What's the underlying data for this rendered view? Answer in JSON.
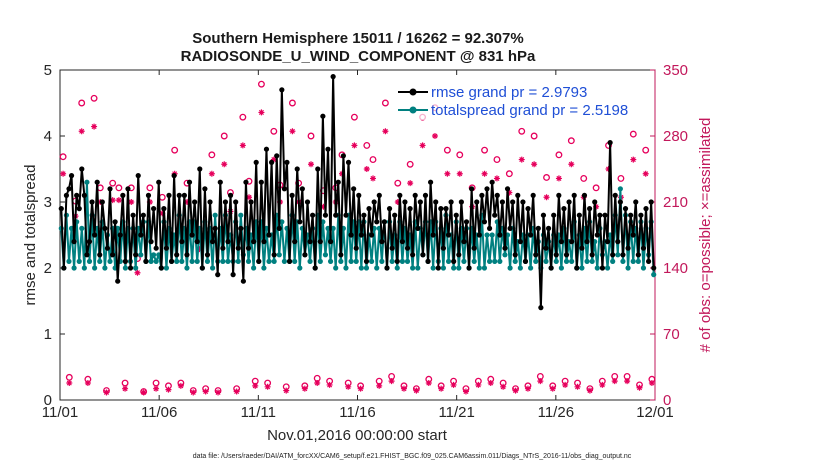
{
  "chart_data": {
    "type": "line",
    "title": "Southern Hemisphere 15011 / 16262 = 92.307%",
    "subtitle": "RADIOSONDE_U_WIND_COMPONENT @ 831 hPa",
    "xlabel": "Nov.01,2016 00:00:00 start",
    "ylabel": "rmse and totalspread",
    "y2label": "# of obs: o=possible; ×=assimilated",
    "xlim": [
      0,
      30
    ],
    "ylim": [
      0,
      5
    ],
    "y2lim": [
      0,
      350
    ],
    "xtick_values": [
      0,
      5,
      10,
      15,
      20,
      25,
      30
    ],
    "xtick_labels": [
      "11/01",
      "11/06",
      "11/11",
      "11/16",
      "11/21",
      "11/26",
      "12/01"
    ],
    "ytick_labels": [
      "0",
      "1",
      "2",
      "3",
      "4",
      "5"
    ],
    "y2tick_labels": [
      "0",
      "70",
      "140",
      "210",
      "280",
      "350"
    ],
    "footnote": "data file: /Users/raeder/DAI/ATM_forcXX/CAM6_setup/f.e21.FHIST_BGC.f09_025.CAM6assim.011/Diags_NTrS_2016-11/obs_diag_output.nc",
    "series": [
      {
        "name": "rmse",
        "legend": "rmse grand pr = 2.9793",
        "axis": "left",
        "color": "#000000",
        "values": [
          2.9,
          2.0,
          3.1,
          3.2,
          3.4,
          2.4,
          3.1,
          2.9,
          3.5,
          3.1,
          2.2,
          2.4,
          3.0,
          2.5,
          3.3,
          2.2,
          3.0,
          2.6,
          2.3,
          3.2,
          2.2,
          2.7,
          1.8,
          2.5,
          3.1,
          2.1,
          3.2,
          2.0,
          2.8,
          2.2,
          3.4,
          2.5,
          2.8,
          2.1,
          3.1,
          2.4,
          2.9,
          2.3,
          3.3,
          2.0,
          2.9,
          2.3,
          3.1,
          2.1,
          3.4,
          2.2,
          3.1,
          2.4,
          3.1,
          2.2,
          3.3,
          2.5,
          3.0,
          2.4,
          3.5,
          2.0,
          3.2,
          2.2,
          3.0,
          2.4,
          2.6,
          1.9,
          3.3,
          2.3,
          3.0,
          2.4,
          3.1,
          1.9,
          3.0,
          2.3,
          2.6,
          1.8,
          3.3,
          2.3,
          3.0,
          2.4,
          3.6,
          2.1,
          3.3,
          2.4,
          3.8,
          2.5,
          3.6,
          2.2,
          3.7,
          2.6,
          4.7,
          3.2,
          3.6,
          2.1,
          3.1,
          2.4,
          3.5,
          2.7,
          3.2,
          2.2,
          3.0,
          2.4,
          2.8,
          2.0,
          3.5,
          2.4,
          4.3,
          2.8,
          3.8,
          2.4,
          4.9,
          2.8,
          3.3,
          2.2,
          3.7,
          2.8,
          3.6,
          2.5,
          3.2,
          2.3,
          3.1,
          2.5,
          2.8,
          2.1,
          2.9,
          2.5,
          3.0,
          2.7,
          3.1,
          2.4,
          2.7,
          2.0,
          2.9,
          2.3,
          2.8,
          2.1,
          3.1,
          2.4,
          3.0,
          2.3,
          2.9,
          2.2,
          3.1,
          2.6,
          3.0,
          2.2,
          3.1,
          2.1,
          3.3,
          2.5,
          3.0,
          2.0,
          2.9,
          2.3,
          2.9,
          2.5,
          3.0,
          2.1,
          2.8,
          2.2,
          3.0,
          2.4,
          2.7,
          2.0,
          3.2,
          2.3,
          3.0,
          2.5,
          3.1,
          2.7,
          3.2,
          2.6,
          3.3,
          2.8,
          3.1,
          2.5,
          3.0,
          2.3,
          3.2,
          2.6,
          3.0,
          2.2,
          3.1,
          2.4,
          3.0,
          2.1,
          2.9,
          2.5,
          3.1,
          2.2,
          2.6,
          1.4,
          2.8,
          2.3,
          2.6,
          2.0,
          2.8,
          2.2,
          3.1,
          2.4,
          2.9,
          2.2,
          3.0,
          2.4,
          3.1,
          2.0,
          2.8,
          2.3,
          3.1,
          2.4,
          2.9,
          2.2,
          3.0,
          2.5,
          2.8,
          2.0,
          2.8,
          2.4,
          3.9,
          2.2,
          3.1,
          2.4,
          3.0,
          2.2,
          2.9,
          2.3,
          2.8,
          2.5,
          3.0,
          2.2,
          2.8,
          2.3,
          2.9,
          2.1,
          3.0,
          2.0
        ]
      },
      {
        "name": "totalspread",
        "legend": "totalspread grand pr = 2.5198",
        "axis": "left",
        "color": "#008080",
        "values": [
          2.6,
          2.0,
          2.8,
          2.1,
          2.6,
          2.0,
          2.7,
          2.1,
          2.6,
          2.0,
          3.3,
          2.1,
          2.8,
          2.0,
          2.6,
          2.1,
          2.7,
          2.0,
          2.5,
          2.1,
          2.6,
          2.0,
          2.6,
          2.1,
          2.7,
          2.0,
          2.6,
          2.1,
          2.6,
          2.0,
          2.6,
          2.2,
          2.7,
          2.1,
          2.7,
          2.1,
          2.2,
          2.1,
          2.2,
          2.0,
          2.7,
          2.0,
          2.6,
          2.1,
          2.5,
          2.1,
          2.8,
          2.1,
          2.6,
          2.0,
          2.7,
          2.1,
          2.7,
          2.1,
          2.6,
          2.0,
          2.7,
          2.1,
          2.6,
          2.0,
          2.8,
          2.1,
          2.6,
          2.1,
          2.8,
          2.1,
          2.5,
          2.1,
          2.7,
          2.1,
          2.8,
          2.2,
          2.6,
          2.1,
          2.5,
          2.0,
          2.7,
          2.1,
          2.7,
          2.0,
          2.6,
          2.1,
          2.5,
          2.1,
          2.8,
          2.2,
          2.7,
          2.1,
          2.6,
          2.1,
          2.8,
          2.1,
          2.7,
          2.0,
          2.6,
          2.2,
          2.5,
          2.1,
          2.6,
          2.0,
          2.8,
          2.1,
          2.7,
          2.2,
          2.6,
          2.1,
          2.6,
          2.0,
          2.8,
          2.1,
          2.6,
          2.0,
          2.8,
          2.1,
          2.7,
          2.1,
          2.7,
          2.0,
          2.7,
          2.0,
          2.5,
          2.1,
          2.6,
          2.0,
          2.6,
          2.1,
          2.7,
          2.0,
          2.7,
          2.1,
          2.5,
          2.0,
          2.7,
          2.1,
          2.6,
          2.1,
          2.5,
          2.0,
          2.7,
          2.0,
          2.6,
          2.2,
          2.7,
          2.1,
          2.7,
          2.0,
          2.7,
          2.1,
          2.6,
          2.0,
          2.8,
          2.1,
          2.5,
          2.0,
          2.7,
          2.0,
          2.6,
          2.1,
          2.6,
          2.0,
          2.6,
          2.1,
          2.5,
          2.0,
          2.8,
          2.0,
          2.5,
          2.1,
          2.5,
          2.1,
          2.7,
          2.1,
          2.6,
          2.2,
          2.5,
          2.0,
          2.6,
          2.1,
          2.4,
          2.0,
          2.5,
          2.1,
          2.5,
          2.0,
          2.6,
          2.1,
          2.4,
          2.0,
          2.5,
          2.1,
          2.4,
          2.0,
          2.5,
          2.1,
          2.5,
          2.0,
          2.6,
          2.1,
          2.4,
          2.1,
          2.7,
          2.0,
          2.5,
          2.0,
          2.6,
          2.1,
          2.7,
          2.1,
          2.4,
          2.0,
          2.6,
          2.2,
          2.4,
          2.0,
          2.5,
          2.1,
          2.8,
          2.2,
          3.2,
          2.1,
          2.8,
          2.0,
          2.7,
          2.1,
          2.6,
          2.1,
          2.7,
          2.0,
          2.6,
          2.2,
          2.7,
          1.9
        ]
      },
      {
        "name": "obs possible",
        "axis": "right",
        "color": "#e6005c",
        "marker": "circle",
        "values": [
          258,
          24,
          211,
          315,
          22,
          320,
          225,
          10,
          230,
          225,
          18,
          225,
          150,
          9,
          225,
          18,
          215,
          15,
          265,
          18,
          230,
          10,
          175,
          12,
          260,
          10,
          280,
          220,
          12,
          300,
          232,
          20,
          335,
          18,
          285,
          228,
          14,
          315,
          230,
          15,
          280,
          23,
          222,
          20,
          225,
          260,
          18,
          300,
          15,
          270,
          255,
          20,
          315,
          25,
          230,
          15,
          250,
          12,
          300,
          22,
          310,
          15,
          265,
          20,
          260,
          12,
          225,
          20,
          265,
          22,
          255,
          18,
          240,
          12,
          285,
          15,
          280,
          25,
          236,
          15,
          260,
          20,
          275,
          18,
          235,
          12,
          225,
          20,
          270,
          25,
          235,
          25,
          282,
          16,
          265,
          22
        ]
      },
      {
        "name": "obs assimilated",
        "axis": "right",
        "color": "#e6005c",
        "marker": "asterisk",
        "values": [
          240,
          18,
          195,
          285,
          18,
          290,
          210,
          8,
          212,
          212,
          12,
          210,
          135,
          8,
          210,
          12,
          198,
          11,
          240,
          15,
          210,
          8,
          160,
          9,
          240,
          8,
          250,
          200,
          9,
          270,
          215,
          15,
          305,
          14,
          255,
          210,
          10,
          285,
          210,
          12,
          250,
          18,
          205,
          16,
          210,
          240,
          14,
          270,
          12,
          245,
          235,
          15,
          285,
          20,
          210,
          12,
          230,
          10,
          270,
          18,
          280,
          12,
          240,
          16,
          240,
          9,
          205,
          16,
          240,
          18,
          235,
          14,
          220,
          10,
          255,
          12,
          250,
          20,
          215,
          12,
          235,
          16,
          250,
          14,
          215,
          10,
          205,
          16,
          245,
          20,
          215,
          20,
          255,
          13,
          240,
          18
        ]
      }
    ]
  }
}
